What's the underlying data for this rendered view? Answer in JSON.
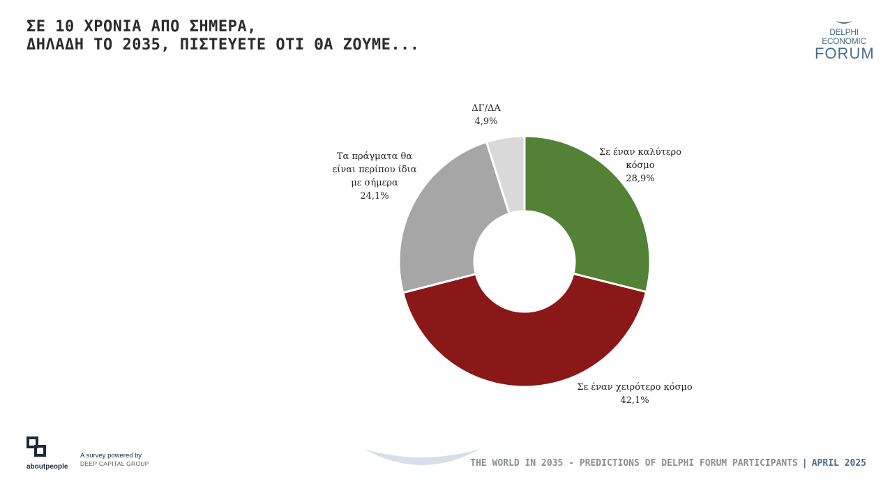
{
  "header": {
    "title_line1": "ΣΕ 10 ΧΡΟΝΙΑ ΑΠΟ ΣΗΜΕΡΑ,",
    "title_line2": "ΔΗΛΑΔΗ ΤΟ 2035, ΠΙΣΤΕΥΕΤΕ ΟΤΙ ΘΑ ΖΟΥΜΕ..."
  },
  "brand": {
    "line1": "DELPHI",
    "line2": "ECONOMIC",
    "line3": "FORUM",
    "icon": "bird-icon"
  },
  "chart_data": {
    "type": "pie",
    "donut": true,
    "title": "ΣΕ 10 ΧΡΟΝΙΑ ΑΠΟ ΣΗΜΕΡΑ, ΔΗΛΑΔΗ ΤΟ 2035, ΠΙΣΤΕΥΕΤΕ ΟΤΙ ΘΑ ΖΟΥΜΕ...",
    "slices": [
      {
        "label_lines": [
          "Σε έναν καλύτερο",
          "κόσμο"
        ],
        "value": 28.9,
        "value_label": "28,9%",
        "color": "#538135"
      },
      {
        "label_lines": [
          "Σε έναν χειρότερο κόσμο"
        ],
        "value": 42.1,
        "value_label": "42,1%",
        "color": "#8b1818"
      },
      {
        "label_lines": [
          "Τα πράγματα θα",
          "είναι περίπου ίδια",
          "με σήμερα"
        ],
        "value": 24.1,
        "value_label": "24,1%",
        "color": "#a6a6a6"
      },
      {
        "label_lines": [
          "ΔΓ/ΔΑ"
        ],
        "value": 4.9,
        "value_label": "4,9%",
        "color": "#d9d9d9"
      }
    ]
  },
  "footer": {
    "logo_name": "aboutpeople",
    "logo_icon": "aboutpeople-logo-icon",
    "survey_line1": "A survey powered by",
    "survey_line2": "DEEP CAPITAL GROUP",
    "report_title": "THE WORLD IN 2035 - PREDICTIONS OF DELPHI FORUM PARTICIPANTS",
    "separator": "|",
    "date": "APRIL 2025"
  }
}
